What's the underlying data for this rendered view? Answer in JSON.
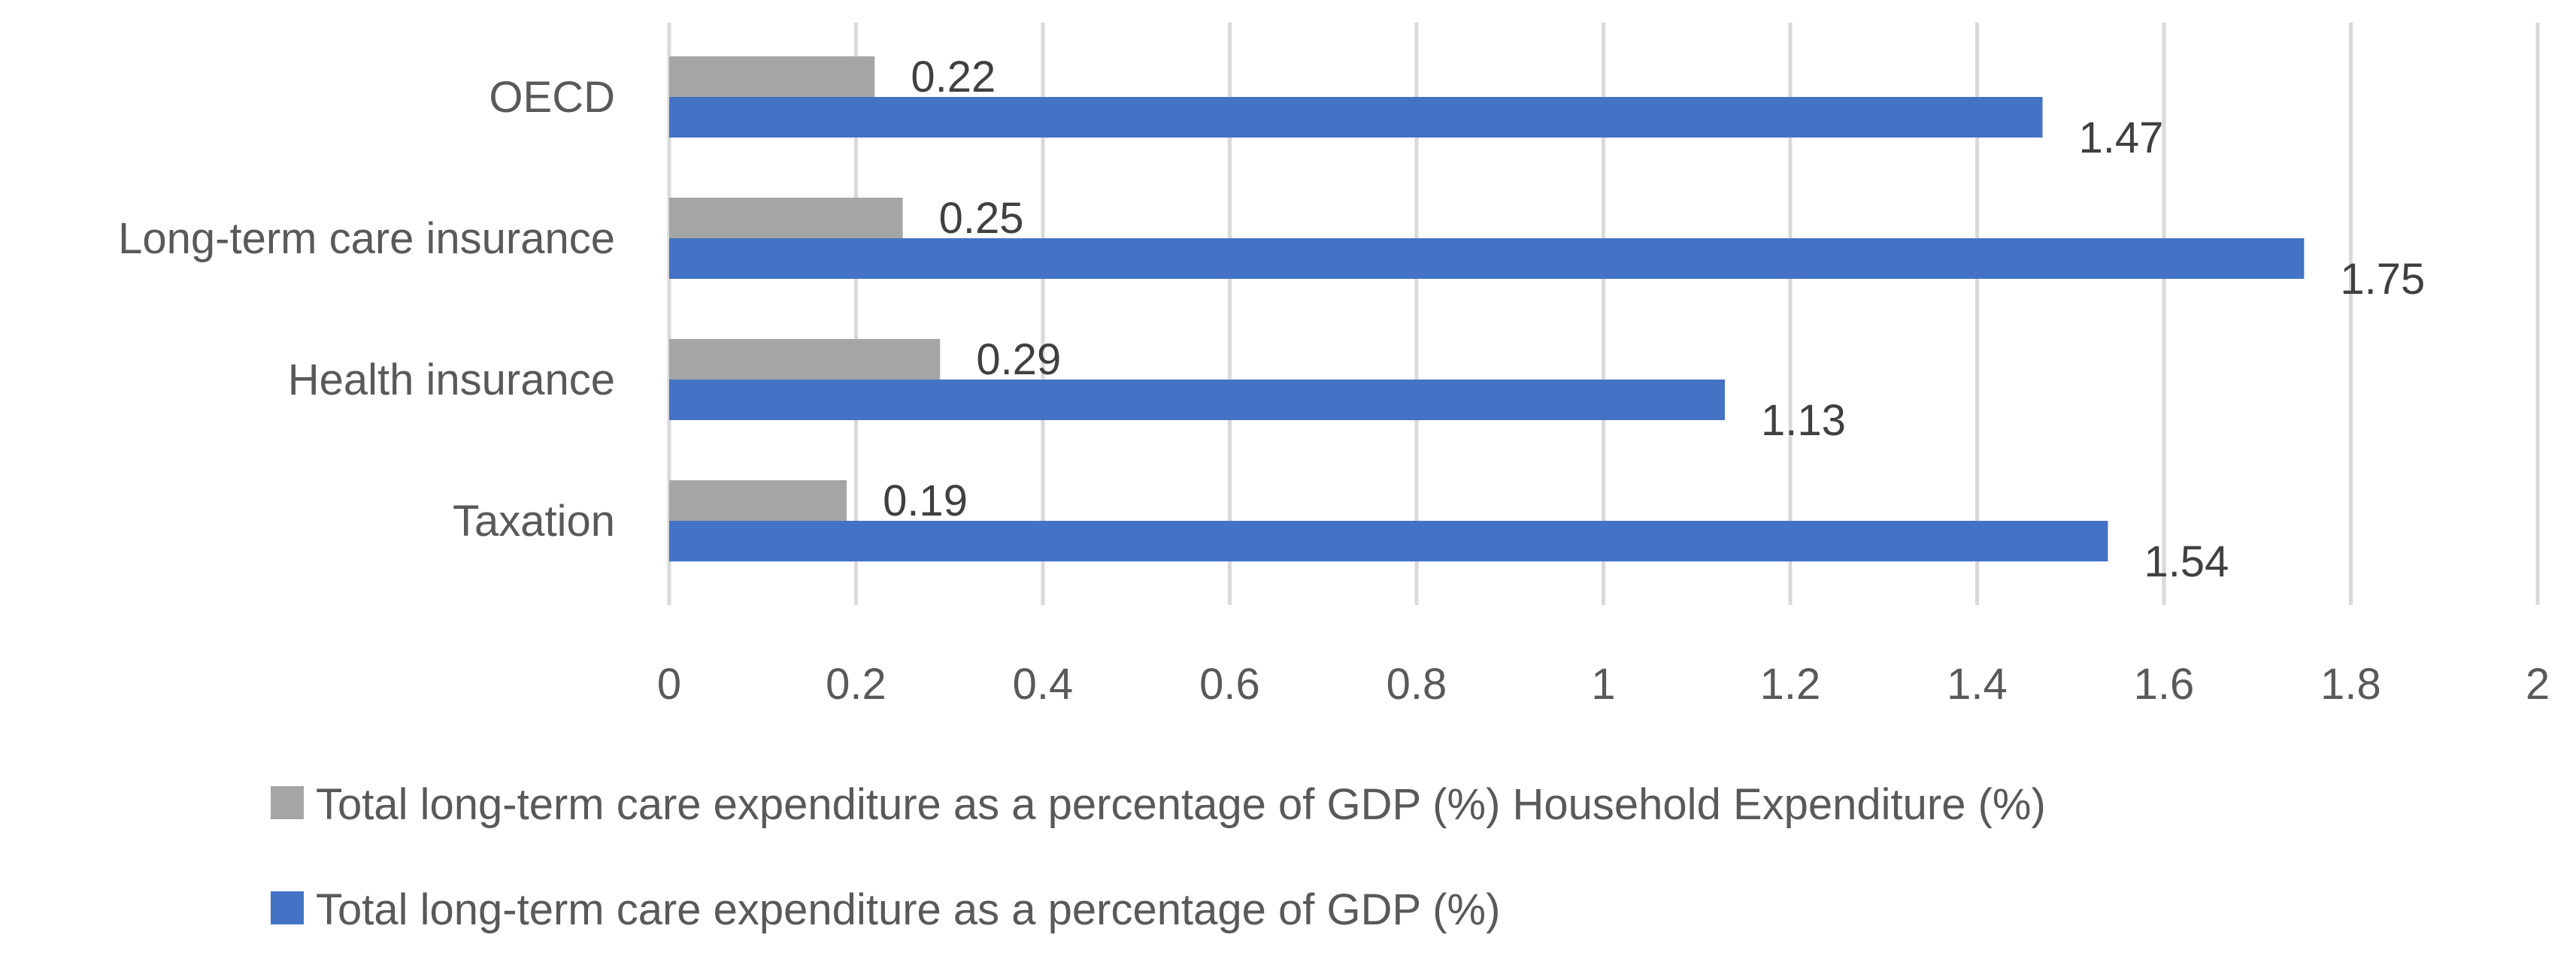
{
  "chart_data": {
    "type": "bar",
    "orientation": "horizontal",
    "categories": [
      "OECD",
      "Long-term care insurance",
      "Health insurance",
      "Taxation"
    ],
    "series": [
      {
        "name": "Total long-term care expenditure as a percentage of GDP (%) Household Expenditure (%)",
        "color": "#a5a5a5",
        "values": [
          0.22,
          0.25,
          0.29,
          0.19
        ],
        "labels": [
          "0.22",
          "0.25",
          "0.29",
          "0.19"
        ]
      },
      {
        "name": "Total long-term care expenditure as a percentage of GDP (%)",
        "color": "#4472c4",
        "values": [
          1.47,
          1.75,
          1.13,
          1.54
        ],
        "labels": [
          "1.47",
          "1.75",
          "1.13",
          "1.54"
        ]
      }
    ],
    "xlim": [
      0,
      2
    ],
    "x_ticks": [
      "0",
      "0.2",
      "0.4",
      "0.6",
      "0.8",
      "1",
      "1.2",
      "1.4",
      "1.6",
      "1.8",
      "2"
    ],
    "grid": "vertical",
    "legend_position": "bottom"
  }
}
